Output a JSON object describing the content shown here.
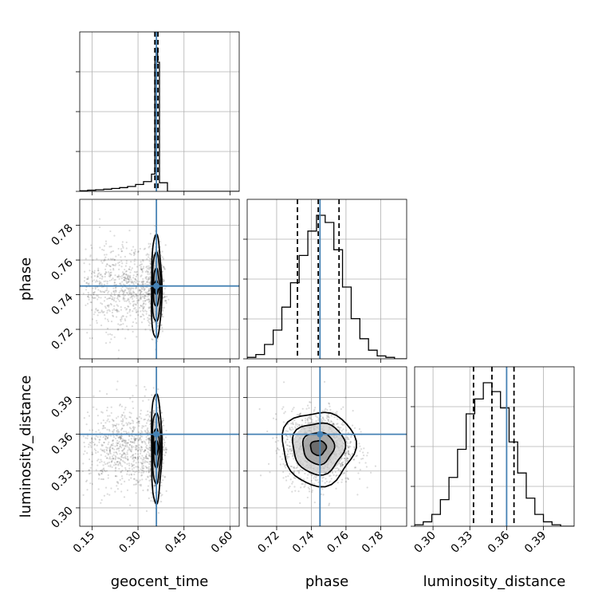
{
  "chart_data": {
    "type": "corner",
    "parameters": [
      "geocent_time",
      "phase",
      "luminosity_distance"
    ],
    "axis_labels": {
      "geocent_time": "geocent_time",
      "phase": "phase",
      "luminosity_distance": "luminosity_distance"
    },
    "ranges": {
      "geocent_time": [
        0.11,
        0.63
      ],
      "phase": [
        0.703,
        0.795
      ],
      "luminosity_distance": [
        0.285,
        0.415
      ]
    },
    "ticks": {
      "geocent_time": [
        0.15,
        0.3,
        0.45,
        0.6
      ],
      "phase": [
        0.72,
        0.74,
        0.76,
        0.78
      ],
      "luminosity_distance": [
        0.3,
        0.33,
        0.36,
        0.39
      ]
    },
    "tick_labels": {
      "geocent_time": [
        "0.15",
        "0.30",
        "0.45",
        "0.60"
      ],
      "phase": [
        "0.72",
        "0.74",
        "0.76",
        "0.78"
      ],
      "luminosity_distance": [
        "0.30",
        "0.33",
        "0.36",
        "0.39"
      ]
    },
    "truths": {
      "geocent_time": 0.36,
      "phase": 0.745,
      "luminosity_distance": 0.36
    },
    "quantiles": {
      "geocent_time": [
        0.355,
        0.36,
        0.365
      ],
      "phase": [
        0.732,
        0.744,
        0.756
      ],
      "luminosity_distance": [
        0.333,
        0.348,
        0.366
      ]
    },
    "histograms": {
      "geocent_time": {
        "bin_edges": [
          0.11,
          0.136,
          0.162,
          0.188,
          0.214,
          0.24,
          0.266,
          0.292,
          0.318,
          0.344,
          0.355,
          0.359,
          0.364,
          0.37,
          0.396,
          0.63
        ],
        "counts": [
          0.004,
          0.008,
          0.011,
          0.015,
          0.02,
          0.026,
          0.034,
          0.048,
          0.068,
          0.12,
          0.94,
          1.0,
          0.9,
          0.06,
          0.0
        ]
      },
      "phase": {
        "bin_edges": [
          0.703,
          0.708,
          0.713,
          0.718,
          0.723,
          0.728,
          0.733,
          0.738,
          0.743,
          0.748,
          0.753,
          0.758,
          0.763,
          0.768,
          0.773,
          0.778,
          0.783,
          0.788,
          0.795
        ],
        "counts": [
          0.01,
          0.03,
          0.1,
          0.2,
          0.36,
          0.53,
          0.72,
          0.89,
          1.0,
          0.95,
          0.76,
          0.5,
          0.28,
          0.14,
          0.06,
          0.02,
          0.01,
          0.0
        ]
      },
      "luminosity_distance": {
        "bin_edges": [
          0.285,
          0.292,
          0.299,
          0.306,
          0.313,
          0.32,
          0.327,
          0.334,
          0.341,
          0.348,
          0.355,
          0.362,
          0.369,
          0.376,
          0.383,
          0.39,
          0.397,
          0.404,
          0.415
        ],
        "counts": [
          0.01,
          0.03,
          0.08,
          0.18,
          0.33,
          0.52,
          0.76,
          0.86,
          0.97,
          0.91,
          0.8,
          0.57,
          0.36,
          0.19,
          0.08,
          0.03,
          0.01,
          0.0
        ]
      }
    },
    "scatter_panels": [
      {
        "x": "geocent_time",
        "y": "phase",
        "center": [
          0.36,
          0.744
        ],
        "spread": [
          0.012,
          0.012
        ],
        "tail_x": [
          0.12,
          0.36
        ],
        "contours": [
          [
            0.006,
            0.004
          ],
          [
            0.01,
            0.011
          ],
          [
            0.014,
            0.02
          ],
          [
            0.017,
            0.03
          ]
        ]
      },
      {
        "x": "geocent_time",
        "y": "luminosity_distance",
        "center": [
          0.36,
          0.349
        ],
        "spread": [
          0.012,
          0.017
        ],
        "tail_x": [
          0.12,
          0.36
        ],
        "contours": [
          [
            0.006,
            0.006
          ],
          [
            0.01,
            0.016
          ],
          [
            0.014,
            0.029
          ],
          [
            0.017,
            0.045
          ]
        ]
      },
      {
        "x": "phase",
        "y": "luminosity_distance",
        "center": [
          0.744,
          0.349
        ],
        "spread": [
          0.01,
          0.015
        ],
        "tail_x": null,
        "contours": [
          [
            0.0045,
            0.006
          ],
          [
            0.009,
            0.013
          ],
          [
            0.015,
            0.021
          ],
          [
            0.021,
            0.03
          ]
        ]
      }
    ],
    "grid": true
  }
}
